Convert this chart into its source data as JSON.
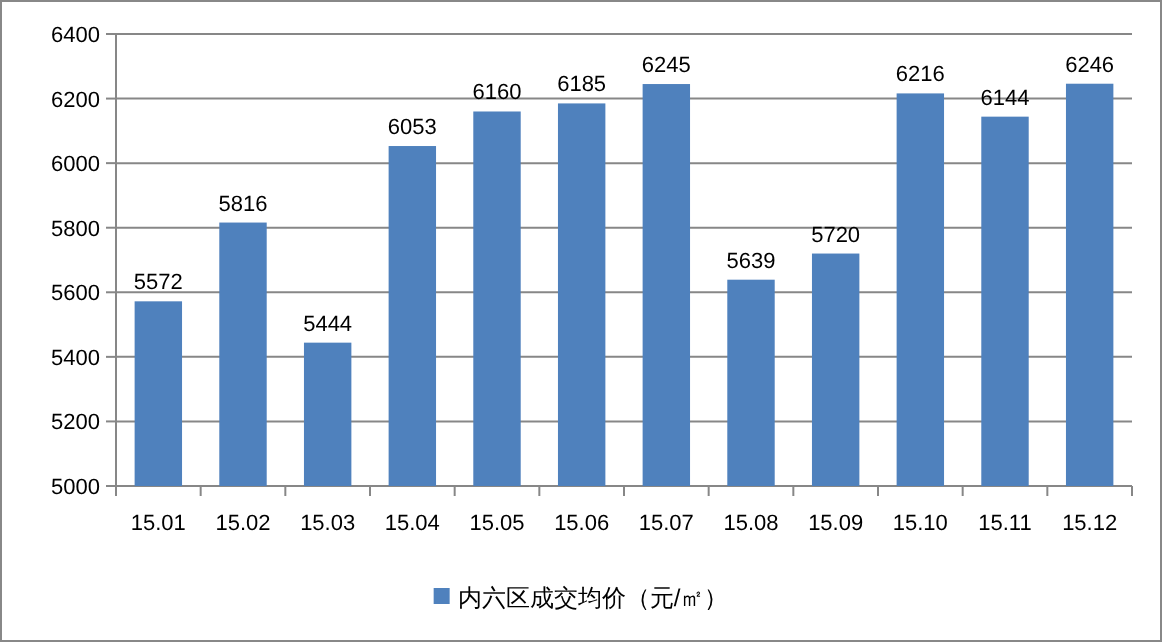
{
  "chart_data": {
    "type": "bar",
    "categories": [
      "15.01",
      "15.02",
      "15.03",
      "15.04",
      "15.05",
      "15.06",
      "15.07",
      "15.08",
      "15.09",
      "15.10",
      "15.11",
      "15.12"
    ],
    "series": [
      {
        "name": "内六区成交均价（元/㎡）",
        "color": "#4f81bd",
        "values": [
          5572,
          5816,
          5444,
          6053,
          6160,
          6185,
          6245,
          5639,
          5720,
          6216,
          6144,
          6246
        ]
      }
    ],
    "ylim": [
      5000,
      6400
    ],
    "yticks": [
      5000,
      5200,
      5400,
      5600,
      5800,
      6000,
      6200,
      6400
    ],
    "grid": "y",
    "data_labels": true,
    "legend": "bottom"
  }
}
